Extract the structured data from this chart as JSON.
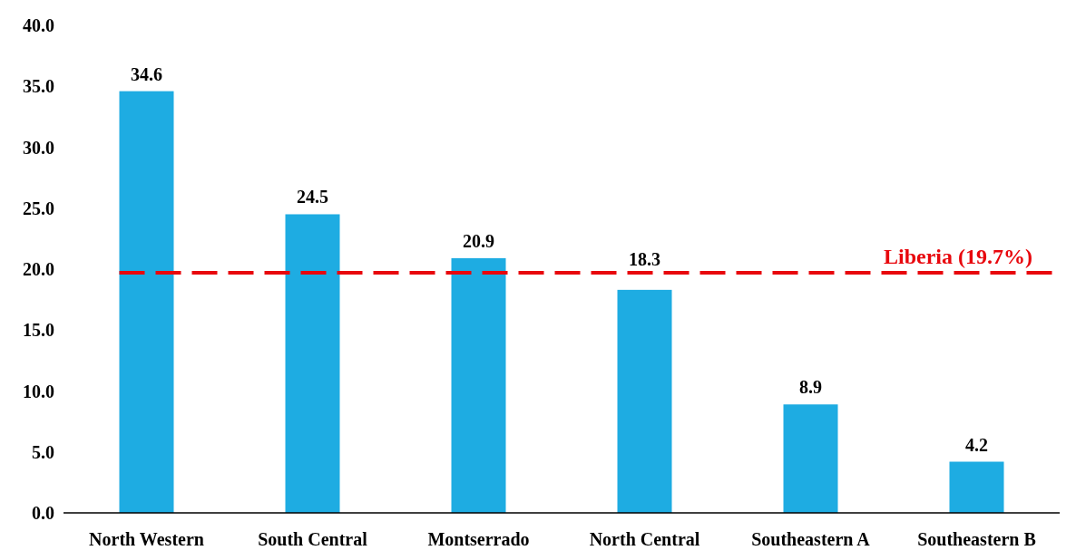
{
  "chart_data": {
    "type": "bar",
    "categories": [
      "North Western",
      "South Central",
      "Montserrado",
      "North Central",
      "Southeastern A",
      "Southeastern B"
    ],
    "values": [
      34.6,
      24.5,
      20.9,
      18.3,
      8.9,
      4.2
    ],
    "color": "#1eace2",
    "ylim": [
      0,
      40
    ],
    "yticks": [
      {
        "value": 0,
        "label": "0.0"
      },
      {
        "value": 5,
        "label": "5.0"
      },
      {
        "value": 10,
        "label": "10.0"
      },
      {
        "value": 15,
        "label": "15.0"
      },
      {
        "value": 20,
        "label": "20.0"
      },
      {
        "value": 25,
        "label": "25.0"
      },
      {
        "value": 30,
        "label": "30.0"
      },
      {
        "value": 35,
        "label": "35.0"
      },
      {
        "value": 40,
        "label": "40.0"
      }
    ],
    "data_labels": true,
    "grid": false,
    "ref_lines": [
      {
        "axis": "y",
        "value": 19.7,
        "label": "Liberia (19.7%)",
        "color": "#e8070d",
        "line_style": "dashed"
      }
    ]
  }
}
